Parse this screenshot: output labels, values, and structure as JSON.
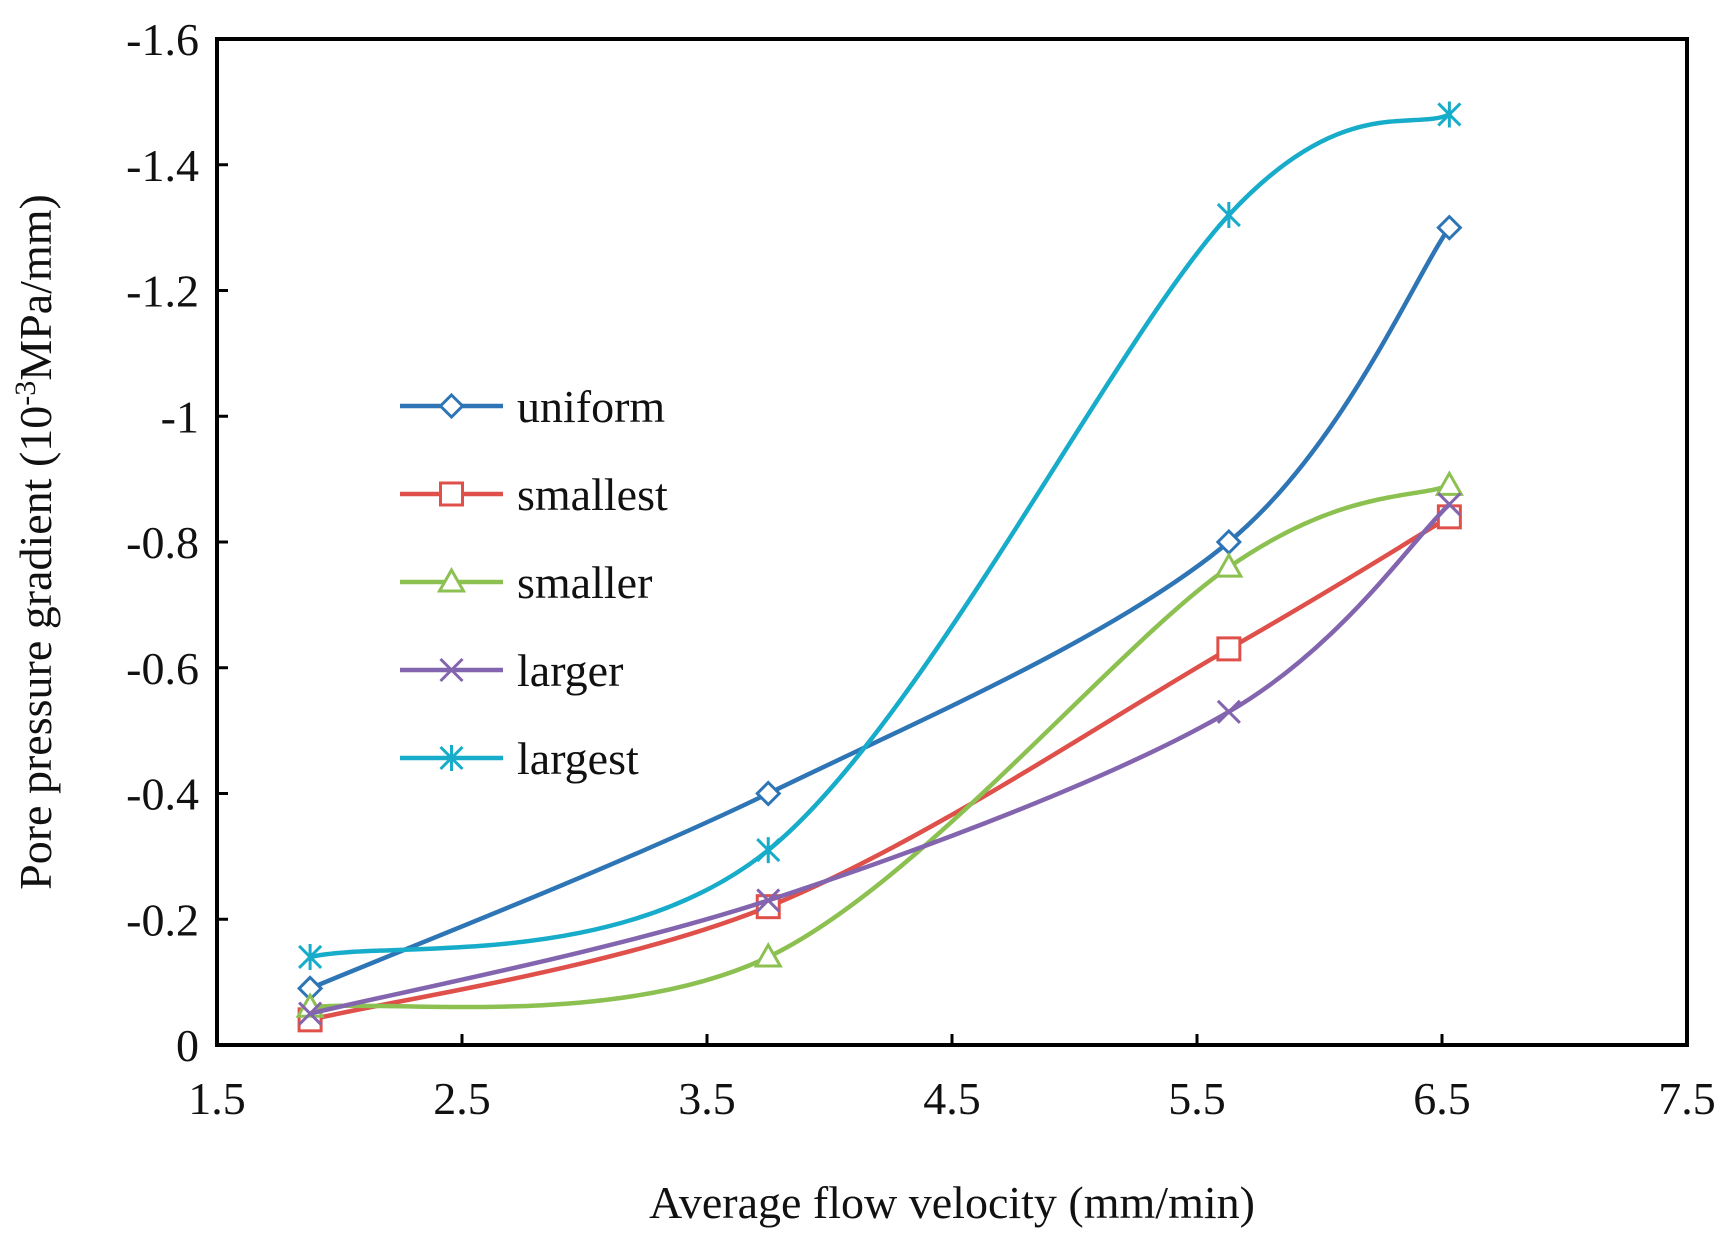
{
  "chart_data": {
    "type": "line",
    "title": "",
    "xlabel": "Average flow velocity (mm/min)",
    "ylabel_main": "Pore pressure gradient (10",
    "ylabel_sup": "-3",
    "ylabel_tail": "MPa/mm)",
    "xlim": [
      1.5,
      7.5
    ],
    "ylim": [
      0,
      -1.6
    ],
    "x_ticks": [
      1.5,
      2.5,
      3.5,
      4.5,
      5.5,
      6.5,
      7.5
    ],
    "x_tick_labels": [
      "1.5",
      "2.5",
      "3.5",
      "4.5",
      "5.5",
      "6.5",
      "7.5"
    ],
    "y_ticks": [
      0,
      -0.2,
      -0.4,
      -0.6,
      -0.8,
      -1,
      -1.2,
      -1.4,
      -1.6
    ],
    "y_tick_labels": [
      "0",
      "-0.2",
      "-0.4",
      "-0.6",
      "-0.8",
      "-1",
      "-1.2",
      "-1.4",
      "-1.6"
    ],
    "grid": false,
    "legend_position": "left-center",
    "x": [
      1.88,
      3.75,
      5.63,
      6.53
    ],
    "series": [
      {
        "name": "uniform",
        "marker": "diamond",
        "color": "#2E75B6",
        "values": [
          -0.09,
          -0.4,
          -0.8,
          -1.3
        ]
      },
      {
        "name": "smallest",
        "marker": "square",
        "color": "#E0504A",
        "values": [
          -0.04,
          -0.22,
          -0.63,
          -0.84
        ]
      },
      {
        "name": "smaller",
        "marker": "triangle",
        "color": "#8CC152",
        "values": [
          -0.06,
          -0.14,
          -0.76,
          -0.89
        ]
      },
      {
        "name": "larger",
        "marker": "x",
        "color": "#8364AE",
        "values": [
          -0.05,
          -0.23,
          -0.53,
          -0.86
        ]
      },
      {
        "name": "largest",
        "marker": "asterisk",
        "color": "#17ACC9",
        "values": [
          -0.14,
          -0.31,
          -1.32,
          -1.48
        ]
      }
    ]
  }
}
